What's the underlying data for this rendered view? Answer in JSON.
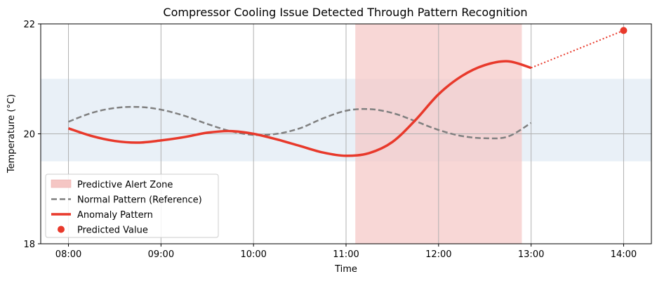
{
  "chart_data": {
    "type": "line",
    "title": "Compressor Cooling Issue Detected Through Pattern Recognition",
    "xlabel": "Time",
    "ylabel": "Temperature (°C)",
    "xlim": [
      "07:42",
      "14:18"
    ],
    "ylim": [
      18,
      22
    ],
    "x_ticks": [
      "08:00",
      "09:00",
      "10:00",
      "11:00",
      "12:00",
      "13:00",
      "14:00"
    ],
    "y_ticks": [
      18,
      20,
      22
    ],
    "grid": true,
    "legend_position": "lower-left",
    "normal_band": {
      "y_min": 19.5,
      "y_max": 21.0,
      "color": "#dfe9f3"
    },
    "alert_zone": {
      "label": "Predictive Alert Zone",
      "x_start": "11:06",
      "x_end": "12:54",
      "color": "#f5c6c4"
    },
    "series": [
      {
        "name": "Normal Pattern (Reference)",
        "style": "dashed",
        "color": "#808080",
        "points": [
          [
            "08:00",
            20.22
          ],
          [
            "08:15",
            20.38
          ],
          [
            "08:30",
            20.47
          ],
          [
            "08:45",
            20.49
          ],
          [
            "09:00",
            20.44
          ],
          [
            "09:15",
            20.33
          ],
          [
            "09:30",
            20.18
          ],
          [
            "09:45",
            20.05
          ],
          [
            "10:00",
            19.98
          ],
          [
            "10:15",
            20.0
          ],
          [
            "10:30",
            20.1
          ],
          [
            "10:45",
            20.28
          ],
          [
            "11:00",
            20.42
          ],
          [
            "11:15",
            20.45
          ],
          [
            "11:30",
            20.38
          ],
          [
            "11:45",
            20.23
          ],
          [
            "12:00",
            20.07
          ],
          [
            "12:15",
            19.96
          ],
          [
            "12:30",
            19.92
          ],
          [
            "12:45",
            19.95
          ],
          [
            "13:00",
            20.2
          ]
        ]
      },
      {
        "name": "Anomaly Pattern",
        "style": "solid",
        "color": "#e8392b",
        "points": [
          [
            "08:00",
            20.1
          ],
          [
            "08:15",
            19.96
          ],
          [
            "08:30",
            19.87
          ],
          [
            "08:45",
            19.84
          ],
          [
            "09:00",
            19.88
          ],
          [
            "09:15",
            19.94
          ],
          [
            "09:30",
            20.02
          ],
          [
            "09:45",
            20.05
          ],
          [
            "10:00",
            20.0
          ],
          [
            "10:15",
            19.9
          ],
          [
            "10:30",
            19.78
          ],
          [
            "10:45",
            19.66
          ],
          [
            "11:00",
            19.6
          ],
          [
            "11:15",
            19.65
          ],
          [
            "11:30",
            19.85
          ],
          [
            "11:45",
            20.25
          ],
          [
            "12:00",
            20.72
          ],
          [
            "12:15",
            21.05
          ],
          [
            "12:30",
            21.25
          ],
          [
            "12:45",
            21.32
          ],
          [
            "13:00",
            21.2
          ]
        ]
      },
      {
        "name": "Predicted Value",
        "style": "point",
        "color": "#e8392b",
        "points": [
          [
            "14:00",
            21.88
          ]
        ]
      }
    ],
    "projection_line": {
      "style": "dotted",
      "color": "#e8392b",
      "from": [
        "13:00",
        21.2
      ],
      "to": [
        "14:00",
        21.88
      ]
    }
  }
}
